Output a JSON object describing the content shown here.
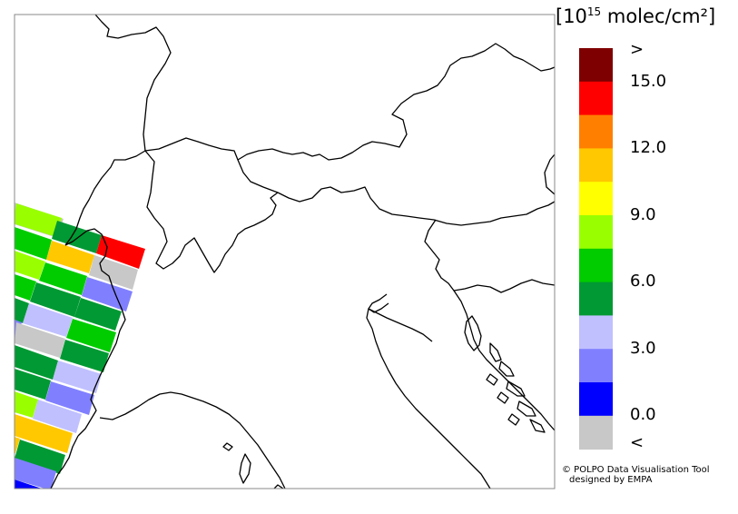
{
  "legend": {
    "unit_prefix": "[10",
    "unit_exp": "15",
    "unit_suffix": " molec/cm²]",
    "bins": [
      {
        "color": "#7f0000"
      },
      {
        "color": "#ff0000"
      },
      {
        "color": "#ff8000"
      },
      {
        "color": "#ffc800"
      },
      {
        "color": "#ffff00"
      },
      {
        "color": "#99ff00"
      },
      {
        "color": "#00cc00"
      },
      {
        "color": "#009933"
      },
      {
        "color": "#c0c0ff"
      },
      {
        "color": "#8080ff"
      },
      {
        "color": "#0000ff"
      },
      {
        "color": "#c8c8c8"
      }
    ],
    "ticks": {
      "over": ">",
      "t15": "15.0",
      "t12": "12.0",
      "t9": "9.0",
      "t6": "6.0",
      "t3": "3.0",
      "t0": "0.0",
      "under": "<"
    }
  },
  "credit": {
    "line1": "© POLPO Data Visualisation Tool",
    "line2": "designed by EMPA"
  }
}
